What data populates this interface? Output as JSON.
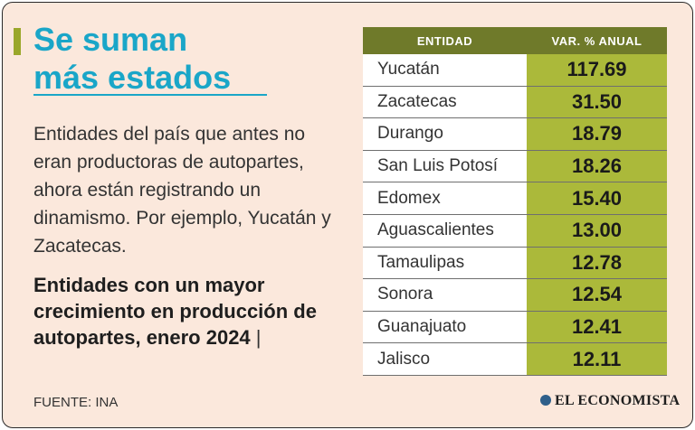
{
  "title": [
    "Se suman",
    "más estados"
  ],
  "description": "Entidades del país que antes no eran productoras de autopartes, ahora están registrando un dinamismo. Por ejemplo, Yucatán y Zacatecas.",
  "subtitle": "Entidades con un mayor crecimiento en producción de autopartes, enero 2024",
  "subtitle_separator": "|",
  "source": "FUENTE: INA",
  "brand": "EL ECONOMISTA",
  "colors": {
    "title": "#1aa6c8",
    "accent": "#9aa72a",
    "header": "#6f7a2a",
    "value_cell": "#abb93a",
    "background": "#fbe8dc"
  },
  "chart_data": {
    "type": "table",
    "columns": [
      "ENTIDAD",
      "VAR. % ANUAL"
    ],
    "categories": [
      "Yucatán",
      "Zacatecas",
      "Durango",
      "San Luis Potosí",
      "Edomex",
      "Aguascalientes",
      "Tamaulipas",
      "Sonora",
      "Guanajuato",
      "Jalisco"
    ],
    "values": [
      "117.69",
      "31.50",
      "18.79",
      "18.26",
      "15.40",
      "13.00",
      "12.78",
      "12.54",
      "12.41",
      "12.11"
    ]
  }
}
